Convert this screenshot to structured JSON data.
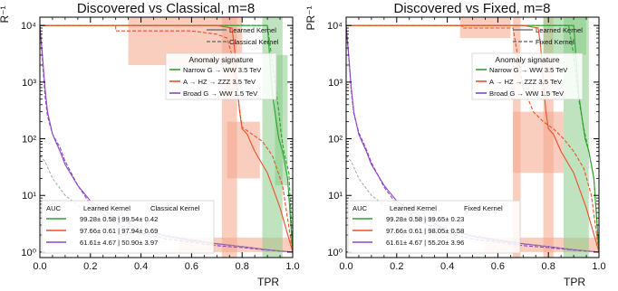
{
  "colors": {
    "green": "#2ca02c",
    "red": "#e8522b",
    "purple": "#8e44c4",
    "gray": "#9a9a9a",
    "band_red": "#f4a58a",
    "band_green": "#88cc88"
  },
  "chart_data": [
    {
      "type": "line",
      "title": "Discovered vs Classical, m=8",
      "xlabel": "TPR",
      "ylabel": "R⁻¹",
      "xlim": [
        0.0,
        1.0
      ],
      "ylim": [
        0.8,
        14000
      ],
      "yscale": "log",
      "xticks": [
        "0.0",
        "0.2",
        "0.4",
        "0.6",
        "0.8",
        "1.0"
      ],
      "yticks": [
        "10⁰",
        "10¹",
        "10²",
        "10³",
        "10⁴"
      ],
      "style_legend": [
        "Learned Kernel",
        "Classical Kernel"
      ],
      "legend_title": "Anomaly signature",
      "legend_placement": "top-right",
      "signals": [
        {
          "name": "Narrow G → WW 3.5 TeV",
          "color": "green"
        },
        {
          "name": "A → HZ → ZZZ 3.5 TeV",
          "color": "red"
        },
        {
          "name": "Broad G → WW 1.5 TeV",
          "color": "purple"
        }
      ],
      "auc_header": [
        "AUC",
        "Learned Kernel",
        "Classical Kernel"
      ],
      "auc_rows": [
        {
          "color": "green",
          "text": "99.28± 0.58 | 99.54± 0.42"
        },
        {
          "color": "red",
          "text": "97.66± 0.61 | 97.94± 0.69"
        },
        {
          "color": "purple",
          "text": "61.61± 4.67 | 50.90± 3.97"
        }
      ],
      "series": [
        {
          "signal": "green",
          "kernel": "learned",
          "x": [
            0.0,
            0.7,
            0.86,
            0.9,
            0.92,
            0.935,
            0.945,
            0.96,
            0.98,
            1.0
          ],
          "y": [
            10000,
            10000,
            10000,
            10000,
            600,
            200,
            100,
            60,
            20,
            1
          ]
        },
        {
          "signal": "green",
          "kernel": "classical",
          "x": [
            0.0,
            0.7,
            0.85,
            0.9,
            0.93,
            0.945,
            0.955,
            0.965,
            0.985,
            1.0
          ],
          "y": [
            10000,
            10000,
            10000,
            10000,
            1000,
            300,
            120,
            60,
            25,
            1
          ]
        },
        {
          "signal": "red",
          "kernel": "learned",
          "x": [
            0.0,
            0.4,
            0.6,
            0.7,
            0.76,
            0.77,
            0.78,
            0.79,
            0.8,
            0.82,
            0.85,
            0.9,
            0.95,
            1.0
          ],
          "y": [
            10000,
            10000,
            10000,
            10000,
            9000,
            4000,
            1000,
            300,
            150,
            120,
            60,
            25,
            6,
            1
          ]
        },
        {
          "signal": "red",
          "kernel": "classical",
          "x": [
            0.0,
            0.3,
            0.3,
            0.6,
            0.7,
            0.74,
            0.76,
            0.78,
            0.8,
            0.84,
            0.88,
            0.92,
            0.96,
            1.0
          ],
          "y": [
            10000,
            10000,
            8000,
            8000,
            7000,
            6000,
            3000,
            700,
            160,
            120,
            90,
            50,
            15,
            1
          ]
        },
        {
          "signal": "purple",
          "kernel": "learned",
          "x": [
            0.0,
            0.01,
            0.02,
            0.03,
            0.05,
            0.08,
            0.1,
            0.15,
            0.2,
            0.3,
            0.4,
            0.5,
            0.6,
            0.7,
            0.8,
            0.9,
            1.0
          ],
          "y": [
            10000,
            3000,
            800,
            300,
            120,
            60,
            35,
            15,
            8,
            4,
            2.5,
            1.9,
            1.6,
            1.4,
            1.25,
            1.1,
            1.0
          ]
        },
        {
          "signal": "purple",
          "kernel": "classical",
          "x": [
            0.0,
            0.01,
            0.02,
            0.03,
            0.05,
            0.08,
            0.1,
            0.15,
            0.2,
            0.3,
            0.4,
            0.5,
            0.6,
            0.7,
            0.8,
            0.9,
            1.0
          ],
          "y": [
            10000,
            2500,
            600,
            250,
            120,
            70,
            40,
            15,
            7,
            3.2,
            2.2,
            1.7,
            1.5,
            1.3,
            1.2,
            1.08,
            1.0
          ]
        },
        {
          "signal": "gray",
          "kernel": "random",
          "x": [
            0.0,
            0.02,
            0.05,
            0.1,
            0.15,
            0.2,
            0.3,
            0.4,
            0.5,
            0.6,
            0.7,
            0.8,
            0.9,
            1.0
          ],
          "y": [
            50,
            40,
            20,
            10,
            6.7,
            5,
            3.3,
            2.5,
            2,
            1.67,
            1.43,
            1.25,
            1.11,
            1.0
          ]
        }
      ],
      "bands": [
        {
          "color": "band_red",
          "x": [
            0.35,
            0.8
          ],
          "y": [
            2000,
            14000
          ]
        },
        {
          "color": "band_red",
          "x": [
            0.72,
            0.78
          ],
          "y": [
            0.8,
            14000
          ]
        },
        {
          "color": "band_red",
          "x": [
            0.74,
            0.87
          ],
          "y": [
            20,
            200
          ]
        },
        {
          "color": "band_red",
          "x": [
            0.55,
            1.0
          ],
          "y": [
            1.0,
            1.8
          ]
        },
        {
          "color": "band_green",
          "x": [
            0.88,
            0.96
          ],
          "y": [
            0.8,
            14000
          ]
        },
        {
          "color": "band_green",
          "x": [
            0.93,
            0.98
          ],
          "y": [
            15,
            3000
          ]
        }
      ]
    },
    {
      "type": "line",
      "title": "Discovered vs Fixed, m=8",
      "xlabel": "TPR",
      "ylabel": "PR⁻¹",
      "xlim": [
        0.0,
        1.0
      ],
      "ylim": [
        0.8,
        14000
      ],
      "yscale": "log",
      "xticks": [
        "0.0",
        "0.2",
        "0.4",
        "0.6",
        "0.8",
        "1.0"
      ],
      "yticks": [
        "10⁰",
        "10¹",
        "10²",
        "10³",
        "10⁴"
      ],
      "style_legend": [
        "Learned Kernel",
        "Fixed Kernel"
      ],
      "legend_title": "Anomaly signature",
      "legend_placement": "top-right",
      "signals": [
        {
          "name": "Narrow G → WW 3.5 TeV",
          "color": "green"
        },
        {
          "name": "A → HZ → ZZZ 3.5 TeV",
          "color": "red"
        },
        {
          "name": "Broad G → WW 1.5 TeV",
          "color": "purple"
        }
      ],
      "auc_header": [
        "AUC",
        "Learned Kernel",
        "Fixed Kernel"
      ],
      "auc_rows": [
        {
          "color": "green",
          "text": "99.28± 0.58 | 99.65± 0.23"
        },
        {
          "color": "red",
          "text": "97.66± 0.61 | 98.05± 0.58"
        },
        {
          "color": "purple",
          "text": "61.61± 4.67 | 55.20± 3.96"
        }
      ],
      "series": [
        {
          "signal": "green",
          "kernel": "learned",
          "x": [
            0.0,
            0.7,
            0.86,
            0.9,
            0.92,
            0.935,
            0.945,
            0.96,
            0.98,
            1.0
          ],
          "y": [
            10000,
            10000,
            10000,
            10000,
            600,
            200,
            100,
            60,
            20,
            1
          ]
        },
        {
          "signal": "green",
          "kernel": "fixed",
          "x": [
            0.0,
            0.6,
            0.8,
            0.88,
            0.9,
            0.92,
            0.94,
            0.96,
            0.98,
            1.0
          ],
          "y": [
            10000,
            10000,
            10000,
            10000,
            3000,
            500,
            150,
            60,
            20,
            1
          ]
        },
        {
          "signal": "red",
          "kernel": "learned",
          "x": [
            0.0,
            0.4,
            0.6,
            0.7,
            0.76,
            0.77,
            0.78,
            0.79,
            0.8,
            0.82,
            0.85,
            0.9,
            0.95,
            1.0
          ],
          "y": [
            10000,
            10000,
            10000,
            10000,
            9000,
            4000,
            1000,
            300,
            150,
            120,
            60,
            25,
            6,
            1
          ]
        },
        {
          "signal": "red",
          "kernel": "fixed",
          "x": [
            0.0,
            0.46,
            0.46,
            0.66,
            0.7,
            0.72,
            0.74,
            0.78,
            0.82,
            0.86,
            0.9,
            0.94,
            0.97,
            1.0
          ],
          "y": [
            10000,
            10000,
            9000,
            9000,
            800,
            500,
            300,
            200,
            150,
            100,
            60,
            30,
            10,
            1
          ]
        },
        {
          "signal": "purple",
          "kernel": "learned",
          "x": [
            0.0,
            0.01,
            0.02,
            0.03,
            0.05,
            0.08,
            0.1,
            0.15,
            0.2,
            0.3,
            0.4,
            0.5,
            0.6,
            0.7,
            0.8,
            0.9,
            1.0
          ],
          "y": [
            10000,
            3000,
            800,
            300,
            120,
            60,
            35,
            15,
            8,
            4,
            2.5,
            1.9,
            1.6,
            1.4,
            1.25,
            1.1,
            1.0
          ]
        },
        {
          "signal": "purple",
          "kernel": "fixed",
          "x": [
            0.0,
            0.01,
            0.02,
            0.03,
            0.05,
            0.08,
            0.1,
            0.15,
            0.2,
            0.3,
            0.4,
            0.5,
            0.6,
            0.7,
            0.8,
            0.9,
            1.0
          ],
          "y": [
            10000,
            2800,
            700,
            280,
            130,
            65,
            38,
            14,
            7,
            3.3,
            2.2,
            1.7,
            1.5,
            1.3,
            1.2,
            1.08,
            1.0
          ]
        },
        {
          "signal": "gray",
          "kernel": "random",
          "x": [
            0.0,
            0.02,
            0.05,
            0.1,
            0.15,
            0.2,
            0.3,
            0.4,
            0.5,
            0.6,
            0.7,
            0.8,
            0.9,
            1.0
          ],
          "y": [
            50,
            40,
            20,
            10,
            6.7,
            5,
            3.3,
            2.5,
            2,
            1.67,
            1.43,
            1.25,
            1.11,
            1.0
          ]
        }
      ],
      "bands": [
        {
          "color": "band_red",
          "x": [
            0.45,
            0.65
          ],
          "y": [
            6000,
            14000
          ]
        },
        {
          "color": "band_red",
          "x": [
            0.66,
            0.69
          ],
          "y": [
            0.8,
            14000
          ]
        },
        {
          "color": "band_red",
          "x": [
            0.78,
            0.82
          ],
          "y": [
            0.8,
            14000
          ]
        },
        {
          "color": "band_red",
          "x": [
            0.66,
            0.86
          ],
          "y": [
            25,
            300
          ]
        },
        {
          "color": "band_red",
          "x": [
            0.55,
            1.0
          ],
          "y": [
            1.0,
            1.8
          ]
        },
        {
          "color": "band_green",
          "x": [
            0.86,
            0.96
          ],
          "y": [
            0.8,
            14000
          ]
        },
        {
          "color": "band_green",
          "x": [
            0.78,
            0.95
          ],
          "y": [
            3000,
            14000
          ]
        }
      ]
    }
  ]
}
